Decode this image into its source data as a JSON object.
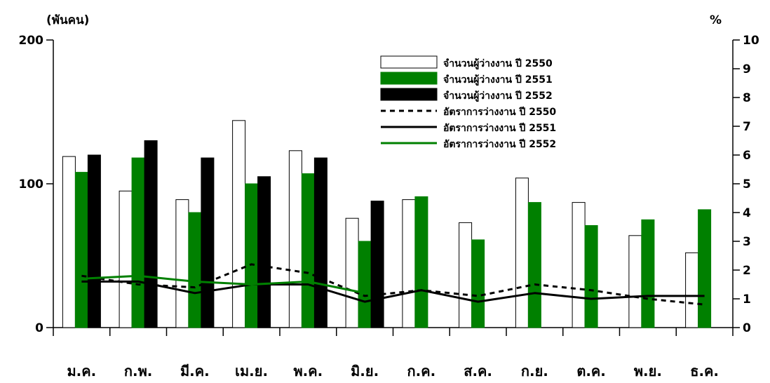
{
  "chart_data": {
    "type": "bar",
    "title": "",
    "left_axis_unit": "(พันคน)",
    "right_axis_unit": "%",
    "ylim": [
      0,
      200
    ],
    "y2lim": [
      0,
      10
    ],
    "yticks": [
      "0",
      "100",
      "200"
    ],
    "y2ticks": [
      "0",
      "1",
      "2",
      "3",
      "4",
      "5",
      "6",
      "7",
      "8",
      "9",
      "10"
    ],
    "categories": [
      "ม.ค.",
      "ก.พ.",
      "มี.ค.",
      "เม.ย.",
      "พ.ค.",
      "มิ.ย.",
      "ก.ค.",
      "ส.ค.",
      "ก.ย.",
      "ต.ค.",
      "พ.ย.",
      "ธ.ค."
    ],
    "bar_series": [
      {
        "name": "จำนวนผู้ว่างงาน ปี 2550",
        "fill": "#ffffff",
        "stroke": "#000000",
        "values": [
          119,
          95,
          89,
          144,
          123,
          76,
          89,
          73,
          104,
          87,
          64,
          52
        ]
      },
      {
        "name": "จำนวนผู้ว่างงาน ปี 2551",
        "fill": "#008000",
        "stroke": "#008000",
        "values": [
          108,
          118,
          80,
          100,
          107,
          60,
          91,
          61,
          87,
          71,
          75,
          82
        ]
      },
      {
        "name": "จำนวนผู้ว่างงาน ปี 2552",
        "fill": "#000000",
        "stroke": "#000000",
        "values": [
          120,
          130,
          118,
          105,
          118,
          88,
          null,
          null,
          null,
          null,
          null,
          null
        ]
      }
    ],
    "line_series": [
      {
        "name": "อัตราการว่างงาน ปี 2550",
        "color": "#000000",
        "dash": "7,6",
        "values": [
          1.8,
          1.5,
          1.4,
          2.2,
          1.9,
          1.1,
          1.3,
          1.1,
          1.5,
          1.3,
          1.0,
          0.8
        ]
      },
      {
        "name": "อัตราการว่างงาน ปี 2551",
        "color": "#000000",
        "dash": "",
        "values": [
          1.6,
          1.6,
          1.2,
          1.5,
          1.5,
          0.9,
          1.3,
          0.9,
          1.2,
          1.0,
          1.1,
          1.1
        ]
      },
      {
        "name": "อัตราการว่างงาน ปี 2552",
        "color": "#008000",
        "dash": "",
        "values": [
          1.7,
          1.8,
          1.6,
          1.5,
          1.6,
          1.2,
          null,
          null,
          null,
          null,
          null,
          null
        ]
      }
    ],
    "legend_position": "top-right",
    "grid": false
  }
}
